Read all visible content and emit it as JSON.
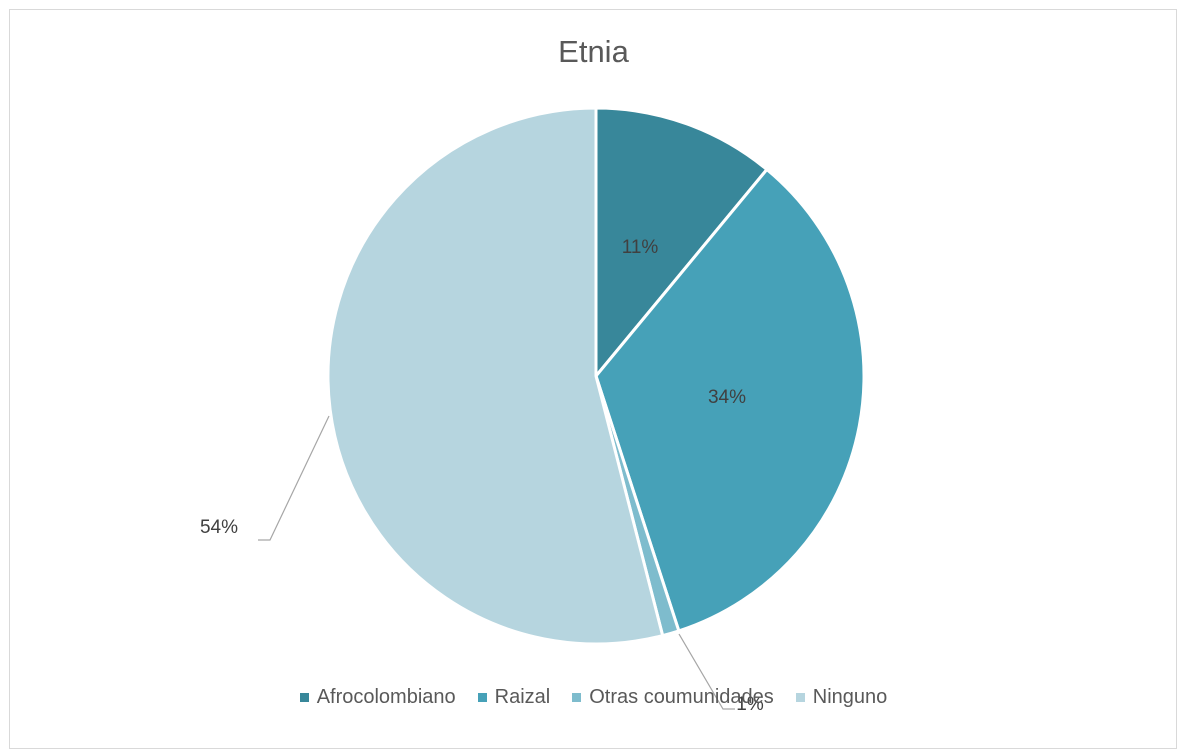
{
  "chart_data": {
    "type": "pie",
    "title": "Etnia",
    "start_angle_deg": 0,
    "direction": "clockwise",
    "legend_position": "bottom",
    "slices": [
      {
        "label": "Afrocolombiano",
        "value": 11,
        "display": "11%",
        "color": "#38879a"
      },
      {
        "label": "Raizal",
        "value": 34,
        "display": "34%",
        "color": "#46a1b8"
      },
      {
        "label": "Otras coumunidades",
        "value": 1,
        "display": "1%",
        "color": "#7ebccd"
      },
      {
        "label": "Ninguno",
        "value": 54,
        "display": "54%",
        "color": "#b6d5df"
      }
    ]
  }
}
